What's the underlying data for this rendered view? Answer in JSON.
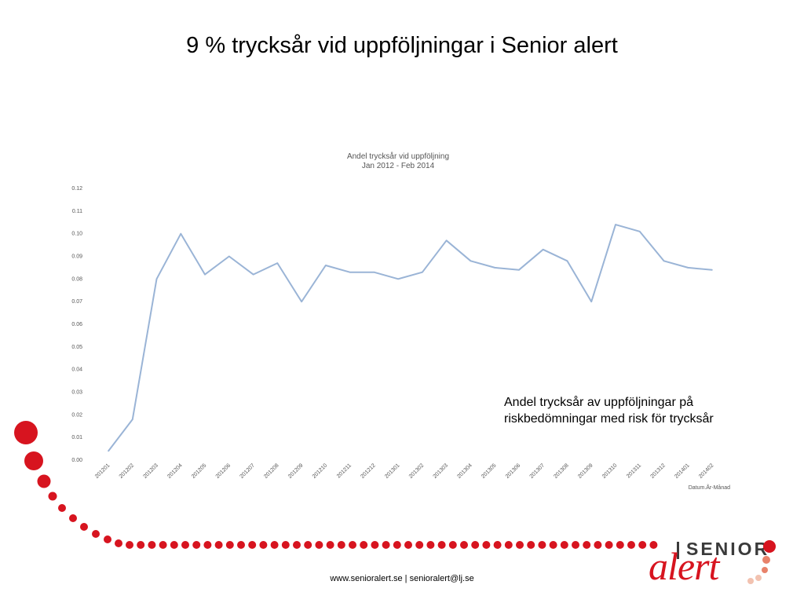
{
  "slide": {
    "title": "9 % trycksår vid uppföljningar i Senior alert",
    "annotation_line1": "Andel trycksår av uppföljningar på",
    "annotation_line2": "riskbedömningar med risk för trycksår",
    "footer": "www.senioralert.se | senioralert@lj.se"
  },
  "logo": {
    "word_top": "SENIOR",
    "word_bottom": "alert",
    "colors": {
      "red": "#d7141f",
      "dark": "#3a3a3a",
      "orange": "#e8826a",
      "peach": "#f2c2b0"
    }
  },
  "colors": {
    "line": "#9ab4d6",
    "accent_red": "#d7141f",
    "axis_text": "#555555"
  },
  "chart_data": {
    "type": "line",
    "title": "Andel trycksår vid uppföljning",
    "subtitle": "Jan 2012 - Feb 2014",
    "xlabel": "Datum.År-Månad",
    "ylabel": "",
    "ylim": [
      0,
      0.12
    ],
    "yticks": [
      "0.00",
      "0.01",
      "0.02",
      "0.03",
      "0.04",
      "0.05",
      "0.06",
      "0.07",
      "0.08",
      "0.09",
      "0.10",
      "0.11",
      "0.12"
    ],
    "grid": false,
    "categories": [
      "201201",
      "201202",
      "201203",
      "201204",
      "201205",
      "201206",
      "201207",
      "201208",
      "201209",
      "201210",
      "201211",
      "201212",
      "201301",
      "201302",
      "201303",
      "201304",
      "201305",
      "201306",
      "201307",
      "201308",
      "201309",
      "201310",
      "201311",
      "201312",
      "201401",
      "201402"
    ],
    "series": [
      {
        "values": [
          0.004,
          0.018,
          0.08,
          0.1,
          0.082,
          0.09,
          0.082,
          0.087,
          0.07,
          0.086,
          0.083,
          0.083,
          0.08,
          0.083,
          0.097,
          0.088,
          0.085,
          0.084,
          0.093,
          0.088,
          0.07,
          0.104,
          0.101,
          0.088,
          0.085,
          0.084
        ]
      }
    ]
  }
}
